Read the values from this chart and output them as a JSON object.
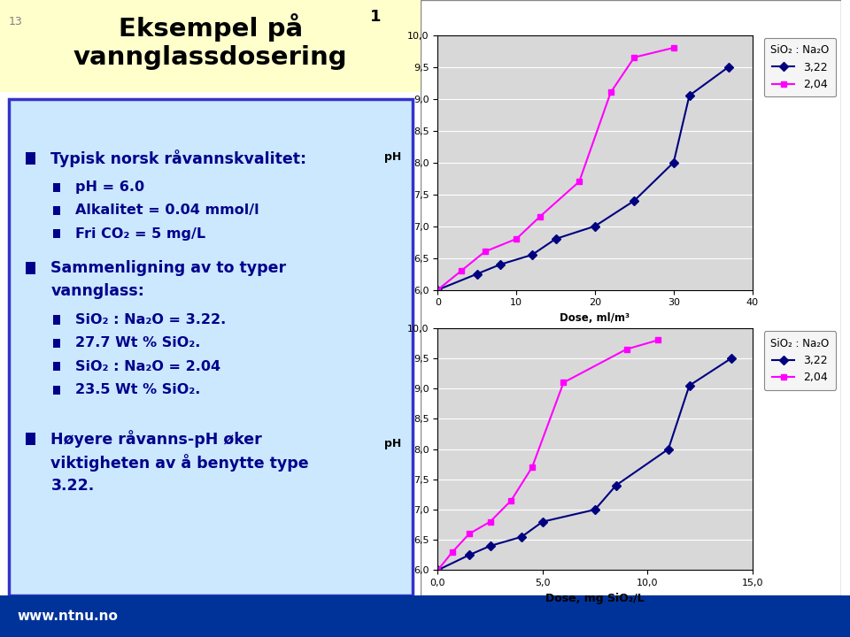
{
  "page_bg": "#ffffff",
  "slide_number": "13",
  "title_bg": "#ffffcc",
  "left_bg": "#cce8ff",
  "left_border": "#3333cc",
  "left_text_color": "#00008B",
  "footer_bg": "#003399",
  "footer_text": "www.ntnu.no",
  "chart1": {
    "xlabel": "Dose, ml/m³",
    "ylabel": "pH",
    "legend_title": "SiO₂ : Na₂O",
    "xlim": [
      0,
      40
    ],
    "ylim": [
      6.0,
      10.0
    ],
    "yticks": [
      6.0,
      6.5,
      7.0,
      7.5,
      8.0,
      8.5,
      9.0,
      9.5,
      10.0
    ],
    "xticks": [
      0,
      10,
      20,
      30,
      40
    ],
    "series_322_x": [
      0,
      5,
      8,
      12,
      15,
      20,
      25,
      30,
      32,
      37
    ],
    "series_322_y": [
      6.0,
      6.25,
      6.4,
      6.55,
      6.8,
      7.0,
      7.4,
      8.0,
      9.05,
      9.5
    ],
    "series_204_x": [
      0,
      3,
      6,
      10,
      13,
      18,
      22,
      25,
      30
    ],
    "series_204_y": [
      6.0,
      6.3,
      6.6,
      6.8,
      7.15,
      7.7,
      9.1,
      9.65,
      9.8
    ],
    "color_322": "#000080",
    "color_204": "#ff00ff",
    "marker_322": "D",
    "marker_204": "s"
  },
  "chart2": {
    "xlabel": "Dose, mg SiO₂/L",
    "ylabel": "pH",
    "legend_title": "SiO₂ : Na₂O",
    "xlim": [
      0.0,
      15.0
    ],
    "ylim": [
      6.0,
      10.0
    ],
    "yticks": [
      6.0,
      6.5,
      7.0,
      7.5,
      8.0,
      8.5,
      9.0,
      9.5,
      10.0
    ],
    "xticks": [
      0.0,
      5.0,
      10.0,
      15.0
    ],
    "series_322_x": [
      0,
      1.5,
      2.5,
      4.0,
      5.0,
      7.5,
      8.5,
      11.0,
      12.0,
      14.0
    ],
    "series_322_y": [
      6.0,
      6.25,
      6.4,
      6.55,
      6.8,
      7.0,
      7.4,
      8.0,
      9.05,
      9.5
    ],
    "series_204_x": [
      0,
      0.7,
      1.5,
      2.5,
      3.5,
      4.5,
      6.0,
      9.0,
      10.5
    ],
    "series_204_y": [
      6.0,
      6.3,
      6.6,
      6.8,
      7.15,
      7.7,
      9.1,
      9.65,
      9.8
    ],
    "color_322": "#000080",
    "color_204": "#ff00ff",
    "marker_322": "D",
    "marker_204": "s"
  }
}
